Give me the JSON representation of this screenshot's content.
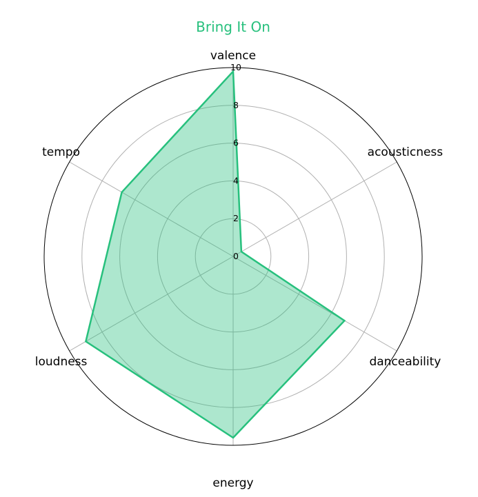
{
  "chart_data": {
    "type": "radar",
    "title": "Bring It On",
    "axes": [
      "valence",
      "acousticness",
      "danceability",
      "energy",
      "loudness",
      "tempo"
    ],
    "series": [
      {
        "values": [
          9.8,
          0.5,
          6.8,
          9.6,
          9.0,
          6.8
        ]
      }
    ],
    "rticks": [
      0,
      2,
      4,
      6,
      8,
      10
    ],
    "rlim": [
      0,
      10
    ],
    "grid": true,
    "colors": {
      "line": "#27c07d",
      "fill": "#27c07d",
      "grid": "#b0b0b0",
      "frame": "#000000"
    }
  }
}
